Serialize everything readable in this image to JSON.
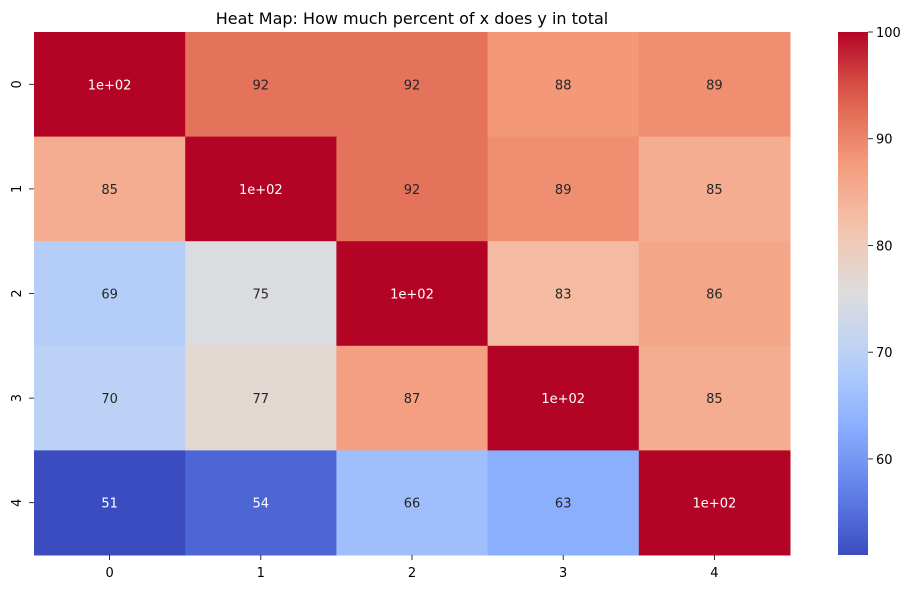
{
  "chart_data": {
    "type": "heatmap",
    "title": "Heat Map: How much percent of x does y in total",
    "xlabel": "",
    "ylabel": "",
    "x_categories": [
      "0",
      "1",
      "2",
      "3",
      "4"
    ],
    "y_categories": [
      "0",
      "1",
      "2",
      "3",
      "4"
    ],
    "values": [
      [
        100,
        92,
        92,
        88,
        89
      ],
      [
        85,
        100,
        92,
        89,
        85
      ],
      [
        69,
        75,
        100,
        83,
        86
      ],
      [
        70,
        77,
        87,
        100,
        85
      ],
      [
        51,
        54,
        66,
        63,
        100
      ]
    ],
    "annotations": [
      [
        "1e+02",
        "92",
        "92",
        "88",
        "89"
      ],
      [
        "85",
        "1e+02",
        "92",
        "89",
        "85"
      ],
      [
        "69",
        "75",
        "1e+02",
        "83",
        "86"
      ],
      [
        "70",
        "77",
        "87",
        "1e+02",
        "85"
      ],
      [
        "51",
        "54",
        "66",
        "63",
        "1e+02"
      ]
    ],
    "colormap": "coolwarm",
    "vmin": 51,
    "vmax": 100,
    "colorbar_ticks": [
      60,
      70,
      80,
      90,
      100
    ],
    "colorbar_tick_labels": [
      "60",
      "70",
      "80",
      "90",
      "100"
    ],
    "grid": false,
    "colors": {
      "low": "#3b4cc0",
      "mid": "#dddddd",
      "high": "#b40426"
    }
  }
}
